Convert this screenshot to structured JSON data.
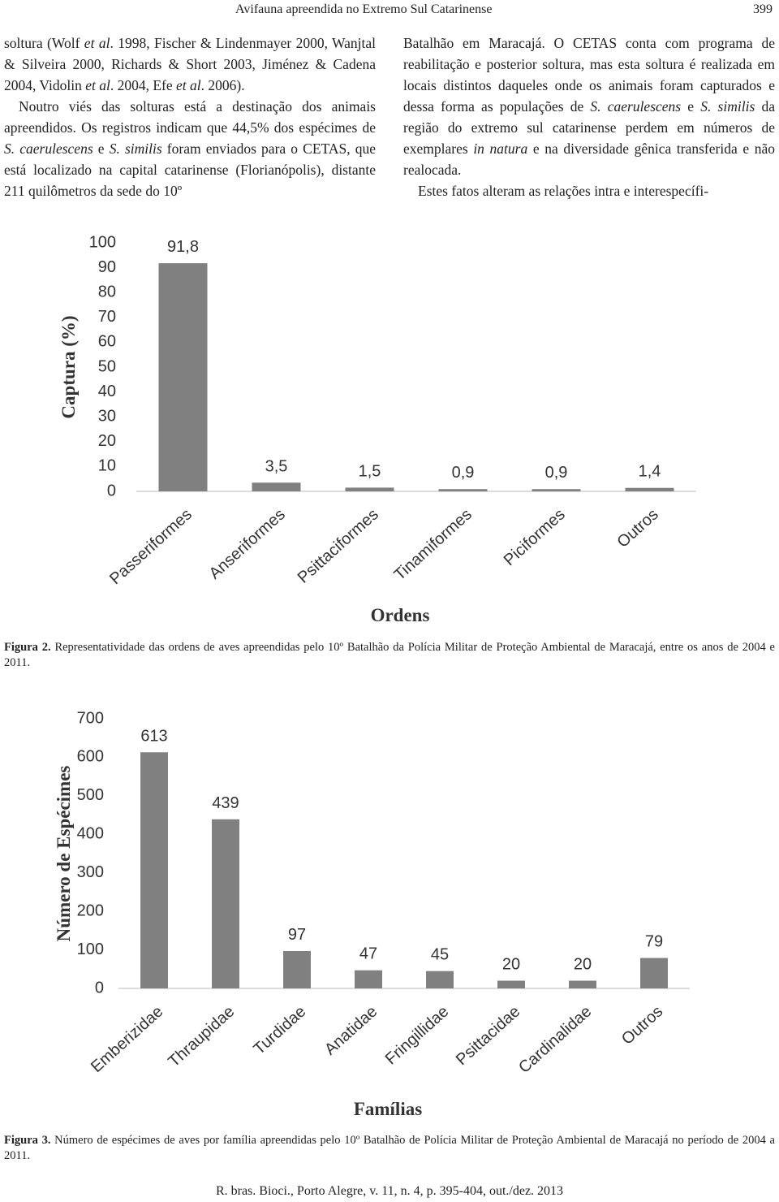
{
  "header": {
    "title": "Avifauna apreendida no Extremo Sul Catarinense",
    "page": "399"
  },
  "left_column": {
    "paragraphs": [
      {
        "runs": [
          {
            "text": "soltura (Wolf "
          },
          {
            "text": "et al",
            "italic": true
          },
          {
            "text": ". 1998, Fischer & Lindenmayer 2000, Wanjtal & Silveira 2000, Richards & Short 2003, Jiménez & Cadena 2004, Vidolin "
          },
          {
            "text": "et al",
            "italic": true
          },
          {
            "text": ". 2004, Efe "
          },
          {
            "text": "et al",
            "italic": true
          },
          {
            "text": ". 2006)."
          }
        ]
      },
      {
        "runs": [
          {
            "text": "Noutro viés das solturas está a destinação dos animais apreendidos. Os registros indicam que 44,5% dos espécimes de "
          },
          {
            "text": "S. caerulescens",
            "italic": true
          },
          {
            "text": " e "
          },
          {
            "text": "S. similis",
            "italic": true
          },
          {
            "text": " foram enviados para o CETAS, que está localizado na capital catarinense (Florianópolis), distante 211 quilômetros da sede do 10º"
          }
        ]
      }
    ]
  },
  "right_column": {
    "paragraphs": [
      {
        "runs": [
          {
            "text": "Batalhão em Maracajá. O CETAS conta com programa de reabilitação e posterior soltura, mas esta soltura é realizada em locais distintos daqueles onde os animais foram capturados e dessa forma as populações de "
          },
          {
            "text": "S. caerulescens",
            "italic": true
          },
          {
            "text": " e "
          },
          {
            "text": "S. similis",
            "italic": true
          },
          {
            "text": " da região do extremo sul catarinense perdem em números de exemplares "
          },
          {
            "text": "in natura",
            "italic": true
          },
          {
            "text": " e na diversidade gênica transferida e não realocada."
          }
        ]
      },
      {
        "runs": [
          {
            "text": "Estes fatos alteram as relações intra e interespecífi-"
          }
        ]
      }
    ]
  },
  "chart_data": [
    {
      "type": "bar",
      "y_label": "Captura (%)",
      "x_label": "Ordens",
      "categories": [
        "Passeriformes",
        "Anseriformes",
        "Psittaciformes",
        "Tinamiformes",
        "Piciformes",
        "Outros"
      ],
      "values": [
        91.8,
        3.5,
        1.5,
        0.9,
        0.9,
        1.4
      ],
      "value_labels": [
        "91,8",
        "3,5",
        "1,5",
        "0,9",
        "0,9",
        "1,4"
      ],
      "color": "#808080",
      "ylim": [
        0,
        100
      ],
      "yticks": [
        0,
        10,
        20,
        30,
        40,
        50,
        60,
        70,
        80,
        90,
        100
      ]
    },
    {
      "type": "bar",
      "y_label": "Número de Espécimes",
      "x_label": "Famílias",
      "categories": [
        "Emberizidae",
        "Thraupidae",
        "Turdidae",
        "Anatidae",
        "Fringillidae",
        "Psittacidae",
        "Cardinalidae",
        "Outros"
      ],
      "values": [
        613,
        439,
        97,
        47,
        45,
        20,
        20,
        79
      ],
      "color": "#808080",
      "ylim": [
        0,
        700
      ],
      "yticks": [
        0,
        100,
        200,
        300,
        400,
        500,
        600,
        700
      ]
    }
  ],
  "captions": [
    {
      "runs": [
        {
          "text": "Figura 2.",
          "bold": true
        },
        {
          "text": " Representatividade das ordens de aves apreendidas pelo 10º Batalhão da Polícia Militar de Proteção Ambiental de Maracajá, entre os anos de 2004 e 2011."
        }
      ]
    },
    {
      "runs": [
        {
          "text": "Figura 3.",
          "bold": true
        },
        {
          "text": " Número de espécimes de aves por família apreendidas pelo 10º Batalhão de Polícia Militar de Proteção Ambiental de Maracajá no período de 2004 a 2011."
        }
      ]
    }
  ],
  "footer": "R. bras. Bioci., Porto Alegre, v. 11, n. 4, p. 395-404, out./dez. 2013"
}
